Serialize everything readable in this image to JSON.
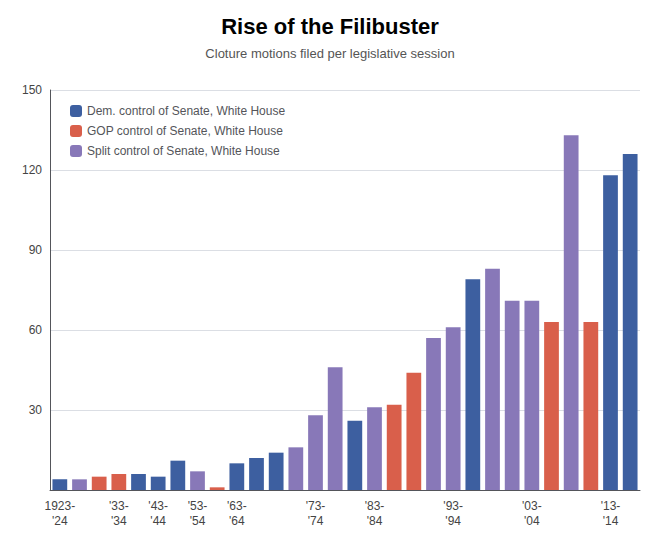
{
  "chart_data": {
    "type": "bar",
    "title": "Rise of the Filibuster",
    "subtitle": "Cloture motions filed per legislative session",
    "categories": [
      "1923-\n'24",
      null,
      null,
      "'33-\n'34",
      null,
      "'43-\n'44",
      null,
      "'53-\n'54",
      null,
      "'63-\n'64",
      null,
      null,
      null,
      "'73-\n'74",
      null,
      null,
      "'83-\n'84",
      null,
      null,
      null,
      "'93-\n'94",
      null,
      null,
      null,
      "'03-\n'04",
      null,
      null,
      null,
      "'13-\n'14",
      null
    ],
    "series": [
      {
        "name": "Dem. control of Senate, White House",
        "color": "#3d5fa0",
        "values": [
          4,
          null,
          null,
          null,
          6,
          5,
          11,
          null,
          null,
          10,
          12,
          14,
          null,
          null,
          null,
          26,
          null,
          null,
          null,
          null,
          null,
          79,
          null,
          null,
          null,
          null,
          null,
          null,
          118,
          126
        ]
      },
      {
        "name": "GOP control of Senate, White House",
        "color": "#d95f4b",
        "values": [
          null,
          null,
          5,
          6,
          null,
          null,
          null,
          null,
          1,
          null,
          null,
          null,
          null,
          null,
          null,
          null,
          null,
          32,
          44,
          null,
          null,
          null,
          null,
          null,
          null,
          63,
          null,
          63,
          null,
          null
        ]
      },
      {
        "name": "Split control of Senate, White House",
        "color": "#8878b8",
        "values": [
          null,
          4,
          null,
          null,
          null,
          null,
          null,
          7,
          null,
          null,
          null,
          null,
          16,
          28,
          46,
          null,
          31,
          null,
          null,
          57,
          61,
          null,
          83,
          71,
          71,
          null,
          133,
          null,
          null,
          null
        ]
      }
    ],
    "ylim": [
      0,
      150
    ],
    "yticks": [
      30,
      60,
      90,
      120,
      150
    ],
    "grid": true,
    "legend": "upper left"
  }
}
